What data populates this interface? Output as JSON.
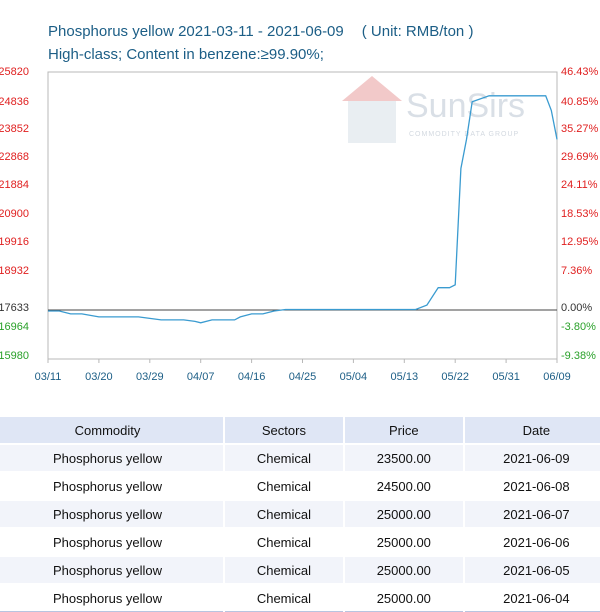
{
  "header": {
    "title": "Phosphorus yellow 2021-03-11 - 2021-06-09",
    "unit": "( Unit: RMB/ton )",
    "subtitle": "High-class; Content in benzene:≥99.90%;"
  },
  "watermark": {
    "brand": "SunSirs",
    "tagline": "COMMODITY DATA GROUP"
  },
  "colors": {
    "line": "#3a9bd0",
    "positive": "#e02020",
    "negative": "#2aa12a",
    "axis_text": "#1c5e86"
  },
  "chart_data": {
    "type": "line",
    "x_ticks": [
      "03/11",
      "03/20",
      "03/29",
      "04/07",
      "04/16",
      "04/25",
      "05/04",
      "05/13",
      "05/22",
      "05/31",
      "06/09"
    ],
    "y_left_ticks": [
      "25820",
      "24836",
      "23852",
      "22868",
      "21884",
      "20900",
      "19916",
      "18932",
      "17633",
      "16964",
      "15980"
    ],
    "y_right_ticks": [
      "46.43%",
      "40.85%",
      "35.27%",
      "29.69%",
      "24.11%",
      "18.53%",
      "12.95%",
      "7.36%",
      "0.00%",
      "-3.80%",
      "-9.38%"
    ],
    "ylim": [
      15980,
      25820
    ],
    "baseline": 17633,
    "series": [
      {
        "x": [
          "2021-03-11",
          "2021-03-13",
          "2021-03-15",
          "2021-03-17",
          "2021-03-20",
          "2021-03-23",
          "2021-03-25",
          "2021-03-27",
          "2021-03-29",
          "2021-03-31",
          "2021-04-02",
          "2021-04-04",
          "2021-04-06",
          "2021-04-07",
          "2021-04-09",
          "2021-04-11",
          "2021-04-13",
          "2021-04-14",
          "2021-04-16",
          "2021-04-18",
          "2021-04-20",
          "2021-04-22",
          "2021-05-13",
          "2021-05-15",
          "2021-05-17",
          "2021-05-19",
          "2021-05-21",
          "2021-05-22",
          "2021-05-23",
          "2021-05-24",
          "2021-05-25",
          "2021-05-28",
          "2021-06-07",
          "2021-06-08",
          "2021-06-09"
        ],
        "y": [
          17600,
          17600,
          17500,
          17500,
          17400,
          17400,
          17400,
          17400,
          17350,
          17300,
          17300,
          17300,
          17250,
          17200,
          17300,
          17300,
          17300,
          17400,
          17500,
          17500,
          17600,
          17650,
          17650,
          17650,
          17800,
          18400,
          18400,
          18500,
          22500,
          23500,
          24800,
          25000,
          25000,
          24500,
          23500
        ]
      }
    ]
  },
  "table": {
    "headers": [
      "Commodity",
      "Sectors",
      "Price",
      "Date"
    ],
    "rows": [
      [
        "Phosphorus yellow",
        "Chemical",
        "23500.00",
        "2021-06-09"
      ],
      [
        "Phosphorus yellow",
        "Chemical",
        "24500.00",
        "2021-06-08"
      ],
      [
        "Phosphorus yellow",
        "Chemical",
        "25000.00",
        "2021-06-07"
      ],
      [
        "Phosphorus yellow",
        "Chemical",
        "25000.00",
        "2021-06-06"
      ],
      [
        "Phosphorus yellow",
        "Chemical",
        "25000.00",
        "2021-06-05"
      ],
      [
        "Phosphorus yellow",
        "Chemical",
        "25000.00",
        "2021-06-04"
      ]
    ]
  }
}
